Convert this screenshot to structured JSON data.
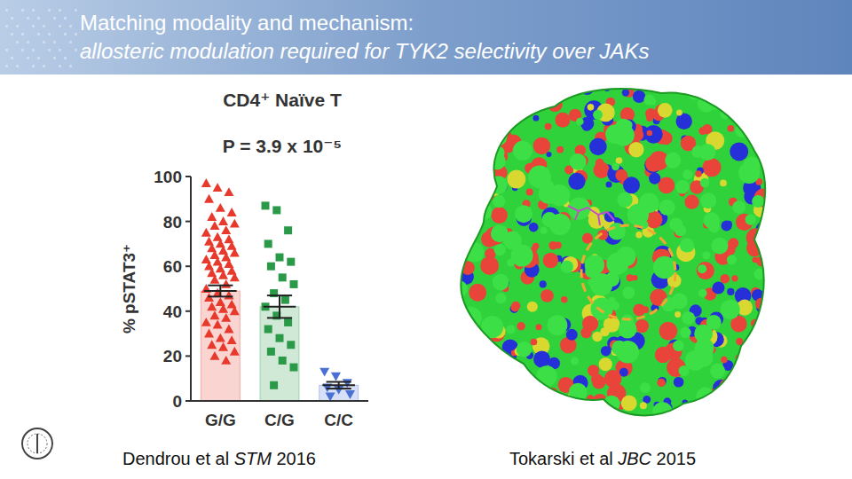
{
  "slide": {
    "title": "Matching modality and mechanism:",
    "subtitle": "allosteric modulation required for TYK2 selectivity over JAKs",
    "captions": [
      [
        "Dendrou et al ",
        "STM",
        " 2016"
      ],
      [
        "Tokarski et al ",
        "JBC",
        " 2015"
      ]
    ]
  },
  "chart_data": {
    "type": "bar",
    "title": "CD4⁺  Naïve T",
    "subtitle": "P = 3.9 x 10⁻⁵",
    "y_label": "% pSTAT3⁺",
    "categories": [
      "G/G",
      "C/G",
      "C/C"
    ],
    "values": [
      49,
      42,
      7
    ],
    "errors": [
      2.5,
      5,
      1.5
    ],
    "colors": [
      "#e8392d",
      "#2a9a48",
      "#4a70d4"
    ],
    "points": [
      [
        97,
        95,
        93,
        90,
        86,
        84,
        82,
        80,
        79,
        78,
        76,
        75,
        73,
        72,
        71,
        70,
        69,
        68,
        67,
        66,
        65,
        64,
        63,
        62,
        61,
        60,
        59,
        58,
        57,
        56,
        55,
        54,
        52,
        50,
        48,
        47,
        46,
        44,
        43,
        42,
        41,
        40,
        38,
        37,
        35,
        34,
        32,
        30,
        28,
        27,
        25,
        24,
        22,
        20,
        18
      ],
      [
        87,
        85,
        76,
        70,
        64,
        62,
        60,
        55,
        52,
        48,
        45,
        42,
        38,
        35,
        32,
        28,
        25,
        22,
        18,
        15,
        7
      ],
      [
        13,
        11,
        8,
        6,
        5,
        3,
        2
      ]
    ],
    "ylim": [
      0,
      100
    ],
    "yticks": [
      0,
      20,
      40,
      60,
      80,
      100
    ],
    "grid": false
  }
}
